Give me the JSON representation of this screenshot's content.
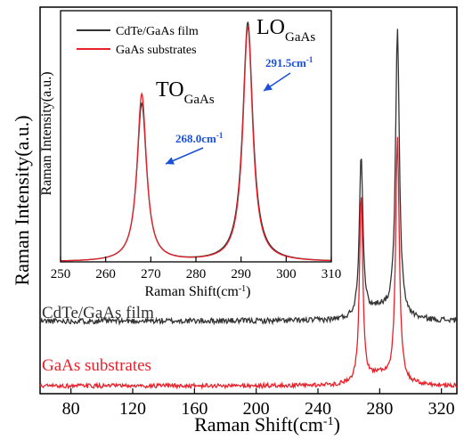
{
  "chart_data": [
    {
      "type": "line",
      "title": "",
      "xlabel": "Raman Shift(cm",
      "xlabel_sup": "-1",
      "xlabel_close": ")",
      "ylabel": "Raman Intensity(a.u.)",
      "xlim": [
        60,
        330
      ],
      "ylim": [
        -0.05,
        2.45
      ],
      "xticks": [
        "80",
        "120",
        "160",
        "200",
        "240",
        "280",
        "320"
      ],
      "grid": false,
      "legend": "none",
      "series_labels": [
        {
          "name": "CdTe/GaAs film",
          "color": "#333333"
        },
        {
          "name": "GaAs substrates",
          "color": "#e8202a"
        }
      ],
      "series": [
        {
          "name": "CdTe/GaAs film",
          "color": "#333333",
          "baseline": 0.42,
          "noise": 0.018,
          "peaks": [
            {
              "center": 268.0,
              "height": 1.05,
              "width": 1.4
            },
            {
              "center": 291.5,
              "height": 1.85,
              "width": 1.5
            }
          ],
          "baseline_rise": [
            {
              "center": 280,
              "height": 0.08,
              "width": 9
            }
          ]
        },
        {
          "name": "GaAs substrates",
          "color": "#e8202a",
          "baseline": 0.0,
          "noise": 0.014,
          "peaks": [
            {
              "center": 268.0,
              "height": 1.22,
              "width": 1.3
            },
            {
              "center": 291.5,
              "height": 1.58,
              "width": 1.4
            }
          ],
          "baseline_rise": [
            {
              "center": 280,
              "height": 0.07,
              "width": 9
            }
          ]
        }
      ]
    },
    {
      "type": "line",
      "title": "",
      "xlabel": "Raman Shift(cm",
      "xlabel_sup": "-1",
      "xlabel_close": ")",
      "ylabel": "Raman Intensity(a.u.)",
      "xlim": [
        250,
        310
      ],
      "ylim": [
        0,
        1.05
      ],
      "xticks": [
        "250",
        "260",
        "270",
        "280",
        "290",
        "300",
        "310"
      ],
      "grid": false,
      "legend": "top-left",
      "series": [
        {
          "name": "CdTe/GaAs film",
          "color": "#333333",
          "peaks": [
            {
              "center": 268.0,
              "height": 0.66,
              "width": 1.3
            },
            {
              "center": 291.5,
              "height": 1.0,
              "width": 1.35
            }
          ]
        },
        {
          "name": "GaAs substrates",
          "color": "#e8202a",
          "peaks": [
            {
              "center": 268.0,
              "height": 0.7,
              "width": 1.25
            },
            {
              "center": 291.5,
              "height": 0.98,
              "width": 1.3
            }
          ]
        }
      ],
      "annotations": [
        {
          "label": "TO",
          "sub": "GaAs"
        },
        {
          "label": "LO",
          "sub": "GaAs"
        },
        {
          "text": "268.0cm",
          "sup": "-1",
          "x": 268.0
        },
        {
          "text": "291.5cm",
          "sup": "-1",
          "x": 291.5
        }
      ]
    }
  ]
}
